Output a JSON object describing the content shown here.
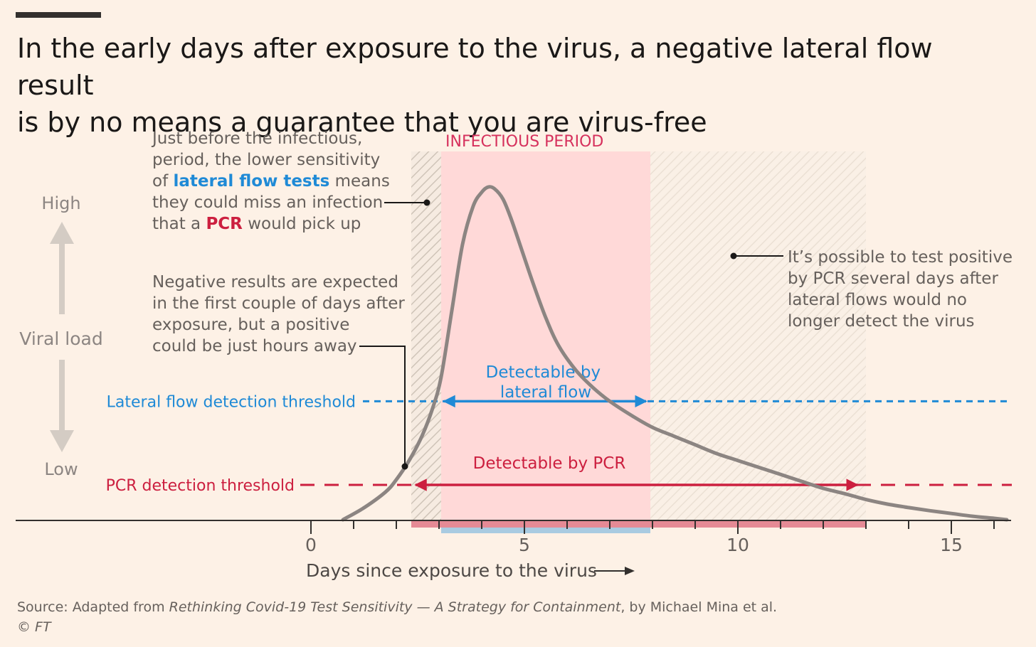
{
  "title": {
    "line1": "In the early days after exposure to the virus, a negative lateral flow result",
    "line2": "is by no means a guarantee that you are virus-free"
  },
  "colors": {
    "background": "#fdf1e6",
    "curve": "#8c8582",
    "lateral_flow": "#1f8ad6",
    "pcr": "#cc1f3f",
    "infectious_period": "#ffd9d8",
    "axis": "#33302e",
    "y_arrow": "#d4ccc4"
  },
  "chart_data": {
    "type": "line",
    "title": "In the early days after exposure to the virus, a negative lateral flow result is by no means a guarantee that you are virus-free",
    "xlabel": "Days since exposure to the virus",
    "ylabel": "Viral load",
    "y_high_label": "High",
    "y_low_label": "Low",
    "xlim": [
      -7,
      16.3
    ],
    "ylim": [
      0,
      1
    ],
    "x_ticks": [
      0,
      5,
      10,
      15
    ],
    "x_tick_labels": [
      "0",
      "5",
      "10",
      "15"
    ],
    "grid": false,
    "series": [
      {
        "x": [
          0.75,
          1.25,
          1.75,
          2.0,
          2.3,
          2.6,
          2.85,
          3.05,
          3.3,
          3.55,
          3.8,
          4.0,
          4.15,
          4.3,
          4.5,
          4.7,
          4.95,
          5.2,
          5.5,
          5.8,
          6.2,
          6.6,
          7.0,
          7.5,
          8.0,
          8.5,
          9.0,
          9.5,
          10.0,
          10.5,
          11.0,
          11.5,
          12.0,
          12.5,
          13.0,
          13.5,
          14.0,
          14.5,
          15.0,
          15.5,
          16.0,
          16.3
        ],
        "y": [
          0.0,
          0.035,
          0.08,
          0.115,
          0.17,
          0.24,
          0.32,
          0.41,
          0.6,
          0.79,
          0.9,
          0.94,
          0.955,
          0.95,
          0.92,
          0.86,
          0.77,
          0.68,
          0.58,
          0.5,
          0.43,
          0.38,
          0.34,
          0.3,
          0.265,
          0.24,
          0.215,
          0.19,
          0.17,
          0.15,
          0.13,
          0.11,
          0.09,
          0.075,
          0.058,
          0.045,
          0.035,
          0.026,
          0.018,
          0.01,
          0.004,
          0.0
        ]
      }
    ],
    "thresholds": [
      {
        "name": "Lateral flow detection threshold",
        "value": 0.34
      },
      {
        "name": "PCR detection threshold",
        "value": 0.1
      }
    ],
    "infectious_period": {
      "label": "INFECTIOUS PERIOD",
      "start": 3.05,
      "end": 7.95
    },
    "hatched_regions": [
      {
        "start": 2.35,
        "end": 3.05
      },
      {
        "start": 7.95,
        "end": 13.0
      }
    ],
    "detectable_ranges": [
      {
        "label_line1": "Detectable by",
        "label_line2": "lateral flow",
        "start": 3.05,
        "end": 7.95
      },
      {
        "label": "Detectable by PCR",
        "start": 2.35,
        "end": 13.0
      }
    ],
    "annotations": {
      "early_miss": {
        "l1": "Just before the infectious,",
        "l2": "period, the lower sensitivity",
        "l3_a": "of ",
        "l3_b": "lateral flow tests",
        "l3_c": " means",
        "l4": "they could miss an infection",
        "l5_a": "that a ",
        "l5_b": "PCR",
        "l5_c": " would pick up"
      },
      "negative_results": {
        "l1": "Negative results are expected",
        "l2": "in the first couple of days after",
        "l3": "exposure, but a positive",
        "l4": "could be just hours away"
      },
      "late_pcr": {
        "l1": "It’s possible to test positive",
        "l2": "by PCR several days after",
        "l3": "lateral flows would no",
        "l4": "longer detect the virus"
      }
    }
  },
  "source": {
    "prefix": "Source: Adapted from ",
    "work": "Rethinking Covid-19 Test Sensitivity — A Strategy for Containment",
    "suffix": ", by Michael Mina et al.",
    "credit": "© FT"
  }
}
